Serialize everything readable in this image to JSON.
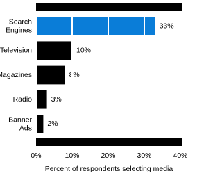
{
  "chart_data": {
    "type": "bar",
    "orientation": "horizontal",
    "categories": [
      "Search Engines",
      "Television",
      "Magazines",
      "Radio",
      "Banner Ads"
    ],
    "values": [
      33,
      10,
      8,
      3,
      2
    ],
    "value_labels": [
      "33%",
      "10%",
      "8%",
      "3%",
      "2%"
    ],
    "colors": [
      "#0a7dd8",
      "#000000",
      "#000000",
      "#000000",
      "#000000"
    ],
    "xlabel": "Percent of respondents selecting media",
    "xlim": [
      0,
      40
    ],
    "xticks": [
      {
        "value": 0,
        "label": "0%"
      },
      {
        "value": 10,
        "label": "10%"
      },
      {
        "value": 20,
        "label": "20%"
      },
      {
        "value": 30,
        "label": "30%"
      },
      {
        "value": 40,
        "label": "40%"
      }
    ],
    "grid": true
  }
}
